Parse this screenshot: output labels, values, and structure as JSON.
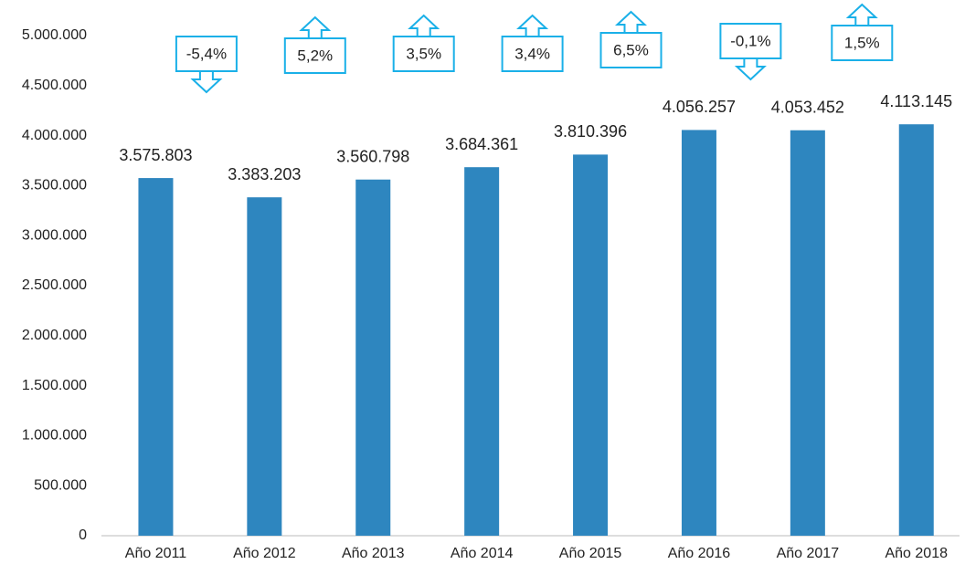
{
  "chart_data": {
    "type": "bar",
    "categories": [
      "Año 2011",
      "Año 2012",
      "Año 2013",
      "Año 2014",
      "Año 2015",
      "Año 2016",
      "Año 2017",
      "Año 2018"
    ],
    "values": [
      3575803,
      3383203,
      3560798,
      3684361,
      3810396,
      4056257,
      4053452,
      4113145
    ],
    "value_labels": [
      "3.575.803",
      "3.383.203",
      "3.560.798",
      "3.684.361",
      "3.810.396",
      "4.056.257",
      "4.053.452",
      "4.113.145"
    ],
    "color": "#2e86bf",
    "ylim": [
      0,
      5000000
    ],
    "yticks": [
      0,
      {
        "value": 500000,
        "label": "500.000"
      },
      {
        "value": 1000000,
        "label": "1.000.000"
      },
      {
        "value": 1500000,
        "label": "1.500.000"
      },
      {
        "value": 2000000,
        "label": "2.000.000"
      },
      {
        "value": 2500000,
        "label": "2.500.000"
      },
      {
        "value": 3000000,
        "label": "3.000.000"
      },
      {
        "value": 3500000,
        "label": "3.500.000"
      },
      {
        "value": 4000000,
        "label": "4.000.000"
      },
      {
        "value": 4500000,
        "label": "4.500.000"
      },
      {
        "value": 5000000,
        "label": "5.000.000"
      }
    ],
    "annotations": [
      {
        "value": -5.4,
        "label": "-5,4%"
      },
      {
        "value": 5.2,
        "label": "5,2%"
      },
      {
        "value": 3.5,
        "label": "3,5%"
      },
      {
        "value": 3.4,
        "label": "3,4%"
      },
      {
        "value": 6.5,
        "label": "6,5%"
      },
      {
        "value": -0.1,
        "label": "-0,1%"
      },
      {
        "value": 1.5,
        "label": "1,5%"
      }
    ],
    "annotation_color": "#1ab0e8",
    "grid": false
  }
}
